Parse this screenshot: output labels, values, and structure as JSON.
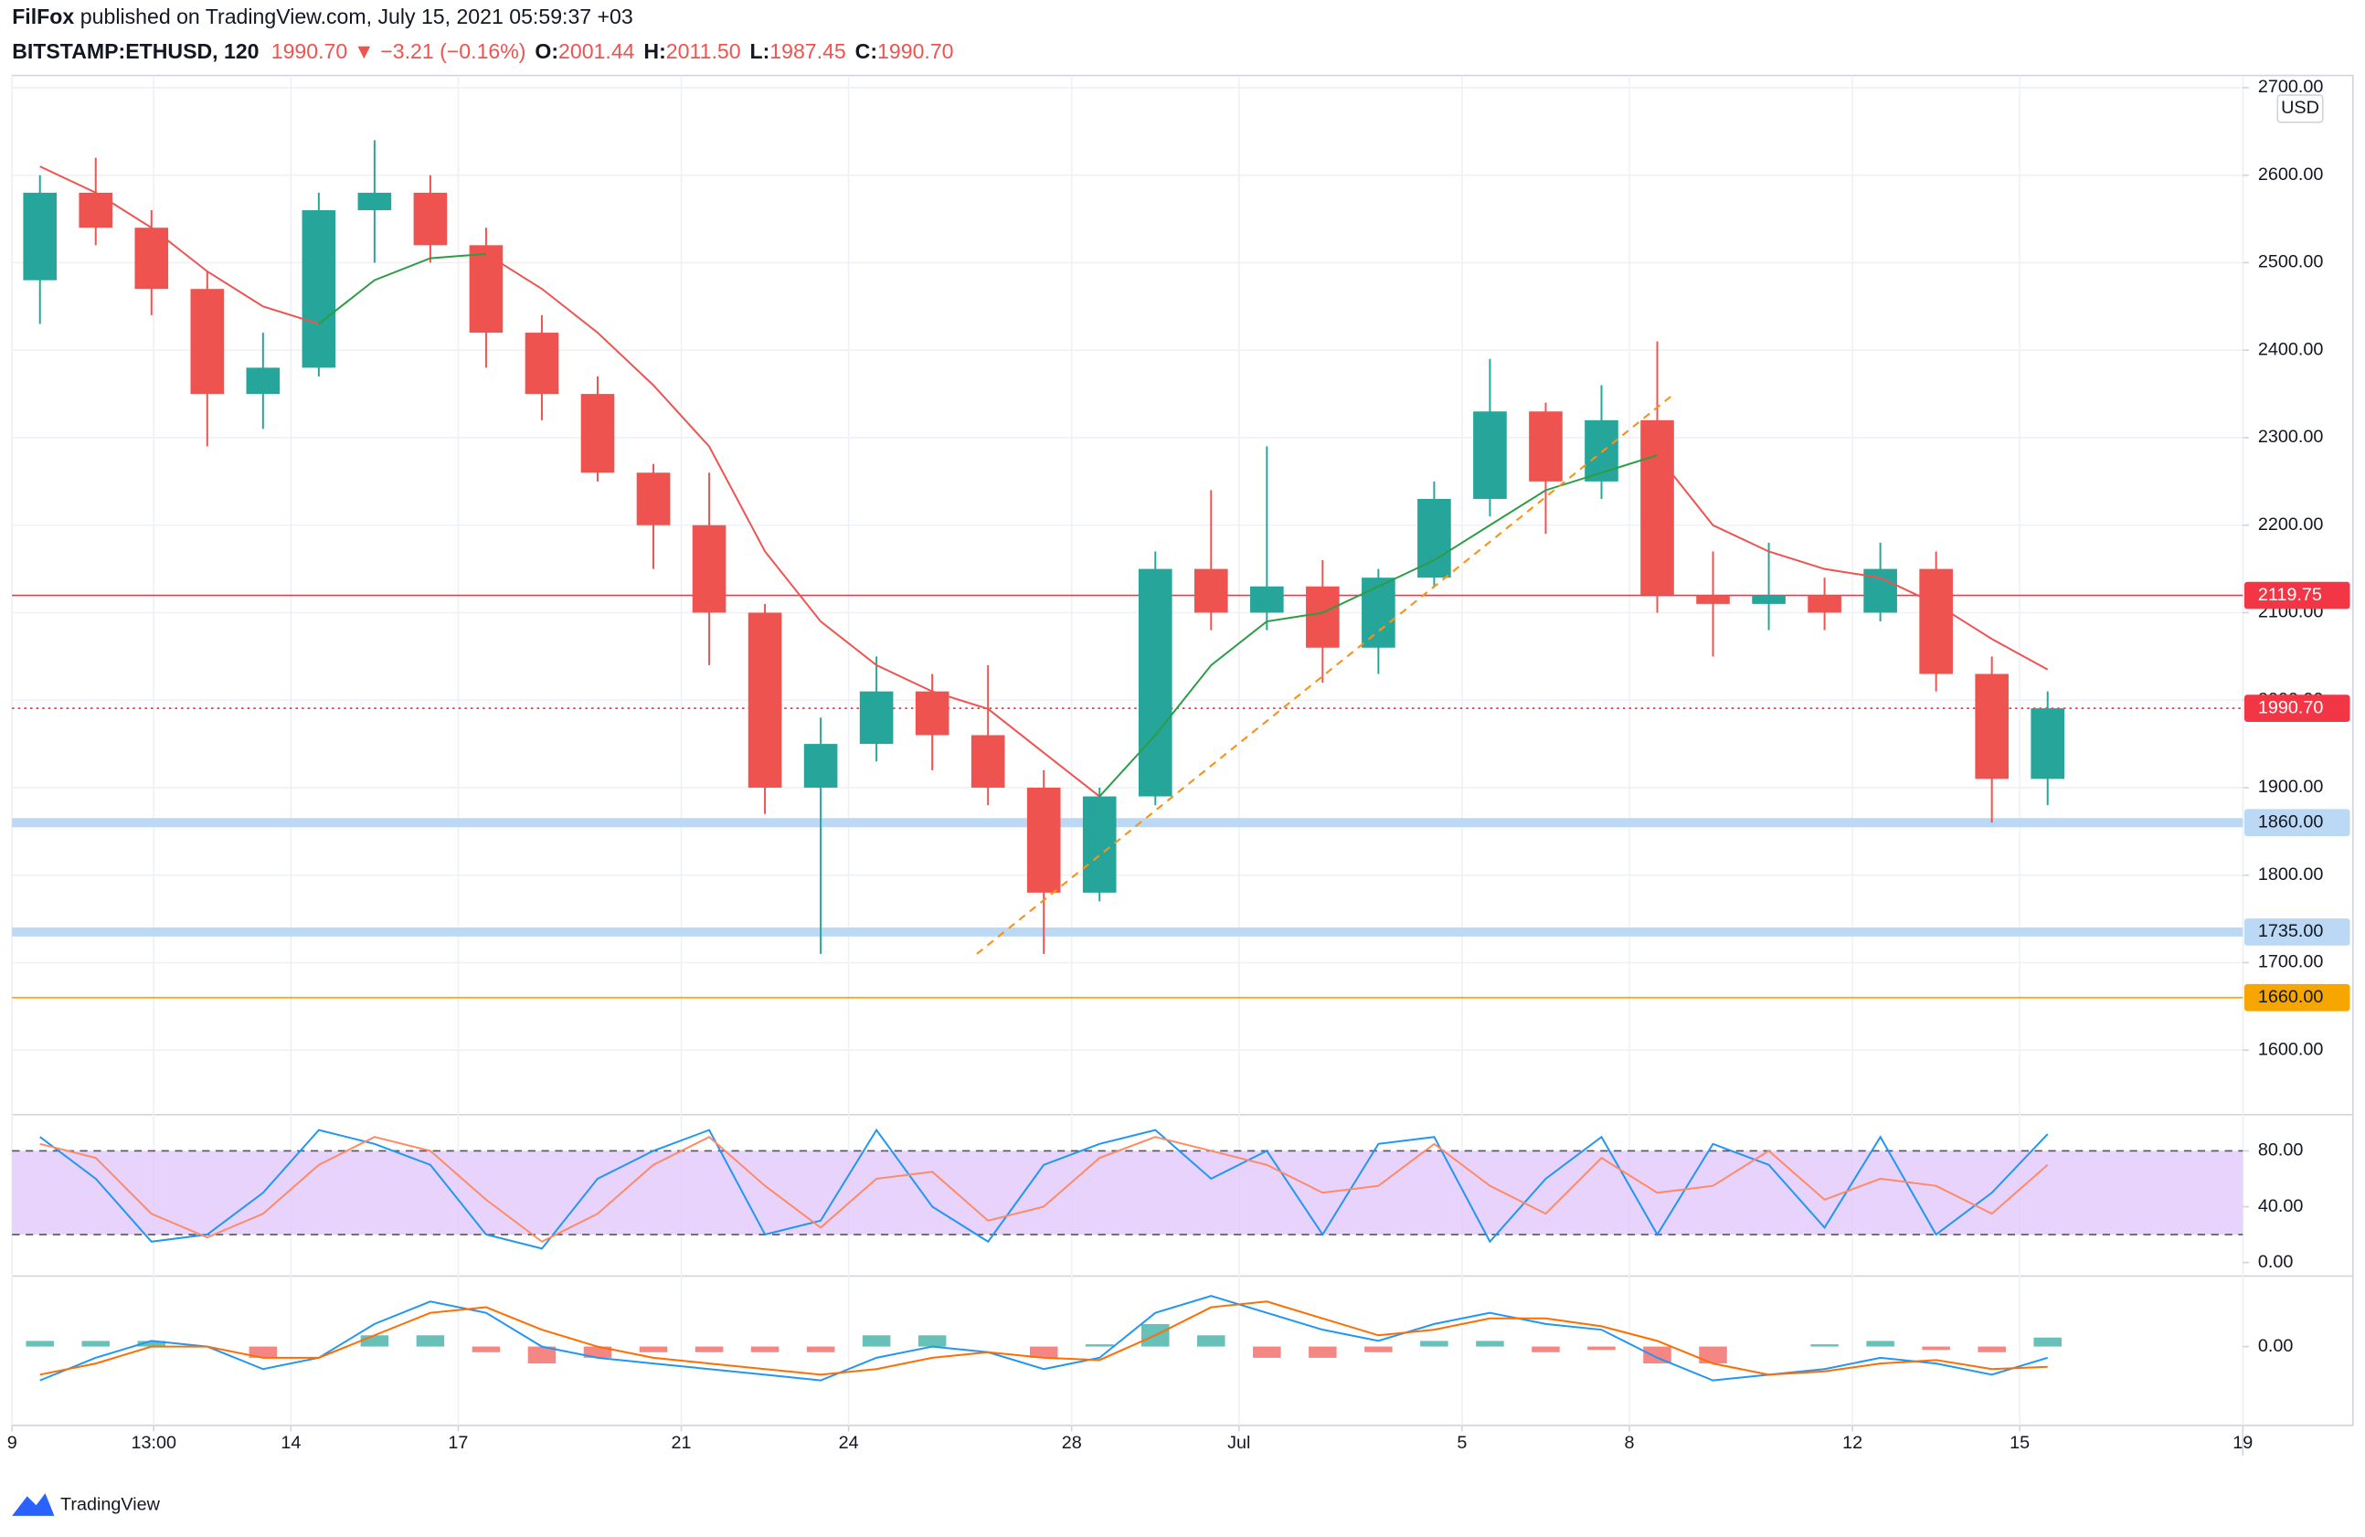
{
  "header": {
    "author": "FilFox",
    "published": "published on TradingView.com, July 15, 2021 05:59:37 +03",
    "symbol": "BITSTAMP:ETHUSD, 120",
    "last": "1990.70",
    "arrow": "▼",
    "change": "−3.21 (−0.16%)",
    "o_label": "O:",
    "o": "2001.44",
    "h_label": "H:",
    "h": "2011.50",
    "l_label": "L:",
    "l": "1987.45",
    "c_label": "C:",
    "c": "1990.70",
    "currency": "USD"
  },
  "footer": {
    "brand": "TradingView"
  },
  "chart_data": [
    {
      "type": "candlestick",
      "up_color": "#26a69a",
      "down_color": "#ef5350",
      "grid": true,
      "x": [
        0.5,
        1.5,
        2.5,
        3.5,
        4.5,
        5.5,
        6.5,
        7.5,
        8.5,
        9.5,
        10.5,
        11.5,
        12.5,
        13.5,
        14.5,
        15.5,
        16.5,
        17.5,
        18.5,
        19.5,
        20.5,
        21.5,
        22.5,
        23.5,
        24.5,
        25.5,
        26.5,
        27.5,
        28.5,
        29.5,
        30.5,
        31.5,
        32.5,
        33.5,
        34.5,
        35.5,
        36.5
      ],
      "open": [
        2480,
        2580,
        2540,
        2470,
        2350,
        2380,
        2560,
        2580,
        2520,
        2420,
        2350,
        2260,
        2200,
        2100,
        1900,
        1950,
        2010,
        1960,
        1900,
        1780,
        1890,
        2150,
        2100,
        2130,
        2060,
        2140,
        2230,
        2330,
        2250,
        2320,
        2120,
        2110,
        2120,
        2100,
        2150,
        2030,
        1910
      ],
      "high": [
        2600,
        2620,
        2560,
        2490,
        2420,
        2580,
        2640,
        2600,
        2540,
        2440,
        2370,
        2270,
        2260,
        2110,
        1980,
        2050,
        2030,
        2040,
        1920,
        1900,
        2170,
        2240,
        2290,
        2160,
        2150,
        2250,
        2390,
        2340,
        2360,
        2410,
        2170,
        2180,
        2140,
        2180,
        2170,
        2050,
        2010
      ],
      "low": [
        2430,
        2520,
        2440,
        2290,
        2310,
        2370,
        2500,
        2500,
        2380,
        2320,
        2250,
        2150,
        2040,
        1870,
        1710,
        1930,
        1920,
        1880,
        1710,
        1770,
        1880,
        2080,
        2080,
        2020,
        2030,
        2130,
        2210,
        2190,
        2230,
        2100,
        2050,
        2080,
        2080,
        2090,
        2010,
        1860,
        1880
      ],
      "close": [
        2580,
        2540,
        2470,
        2350,
        2380,
        2560,
        2580,
        2520,
        2420,
        2350,
        2260,
        2200,
        2100,
        1900,
        1950,
        2010,
        1960,
        1900,
        1780,
        1890,
        2150,
        2100,
        2130,
        2060,
        2140,
        2230,
        2330,
        2250,
        2320,
        2120,
        2110,
        2120,
        2100,
        2150,
        2030,
        1910,
        1990.7
      ],
      "series": [
        {
          "name": "MA",
          "color": "#ef5350",
          "values": [
            2610,
            2580,
            2540,
            2490,
            2450,
            2430,
            null,
            null,
            2510,
            2470,
            2420,
            2360,
            2290,
            2170,
            2090,
            2040,
            2010,
            1990,
            1940,
            1890,
            null,
            null,
            null,
            null,
            null,
            null,
            null,
            null,
            null,
            2280,
            2200,
            2170,
            2150,
            2140,
            2110,
            2070,
            2035
          ]
        },
        {
          "name": "MA rising",
          "color": "#2e9c45",
          "values": [
            null,
            null,
            null,
            null,
            null,
            2430,
            2480,
            2505,
            2510,
            null,
            null,
            null,
            null,
            null,
            null,
            null,
            null,
            null,
            null,
            1890,
            1960,
            2040,
            2090,
            2100,
            2130,
            2160,
            2200,
            2240,
            2260,
            2280,
            null,
            null,
            null,
            null,
            null,
            null,
            null
          ]
        }
      ],
      "trendline": {
        "color": "#f7931a",
        "x": [
          17.3,
          29.8
        ],
        "y": [
          1710,
          2350
        ]
      },
      "levels": [
        {
          "value": 2119.75,
          "label": "2119.75",
          "color": "#f23645",
          "style": "solid",
          "text_color": "#ffffff"
        },
        {
          "value": 1990.7,
          "label": "1990.70",
          "color": "#f23645",
          "style": "dotted",
          "text_color": "#ffffff"
        },
        {
          "value": 1860,
          "label": "1860.00",
          "color": "#bbd9f5",
          "style": "thick",
          "text_color": "#131722"
        },
        {
          "value": 1735,
          "label": "1735.00",
          "color": "#bbd9f5",
          "style": "thick",
          "text_color": "#131722"
        },
        {
          "value": 1660,
          "label": "1660.00",
          "color": "#f7a600",
          "style": "solid",
          "text_color": "#131722"
        }
      ],
      "xlim": [
        0,
        40
      ],
      "xticks": [
        {
          "value": 0,
          "label": "9"
        },
        {
          "value": 2.54,
          "label": "13:00"
        },
        {
          "value": 5,
          "label": "14"
        },
        {
          "value": 8,
          "label": "17"
        },
        {
          "value": 12,
          "label": "21"
        },
        {
          "value": 15,
          "label": "24"
        },
        {
          "value": 19,
          "label": "28"
        },
        {
          "value": 22,
          "label": "Jul"
        },
        {
          "value": 26,
          "label": "5"
        },
        {
          "value": 29,
          "label": "8"
        },
        {
          "value": 33,
          "label": "12"
        },
        {
          "value": 36,
          "label": "15"
        },
        {
          "value": 40,
          "label": "19"
        }
      ],
      "ylim": [
        1528,
        2714
      ],
      "yticks": [
        {
          "value": 1600,
          "label": "1600.00"
        },
        {
          "value": 1700,
          "label": "1700.00"
        },
        {
          "value": 1800,
          "label": "1800.00"
        },
        {
          "value": 1900,
          "label": "1900.00"
        },
        {
          "value": 2000,
          "label": "2000.00"
        },
        {
          "value": 2100,
          "label": "2100.00"
        },
        {
          "value": 2200,
          "label": "2200.00"
        },
        {
          "value": 2300,
          "label": "2300.00"
        },
        {
          "value": 2400,
          "label": "2400.00"
        },
        {
          "value": 2500,
          "label": "2500.00"
        },
        {
          "value": 2600,
          "label": "2600.00"
        },
        {
          "value": 2700,
          "label": "2700.00"
        }
      ]
    },
    {
      "type": "line",
      "band": [
        20,
        80
      ],
      "band_color": "#e1c8fb",
      "x": [
        0.5,
        1.5,
        2.5,
        3.5,
        4.5,
        5.5,
        6.5,
        7.5,
        8.5,
        9.5,
        10.5,
        11.5,
        12.5,
        13.5,
        14.5,
        15.5,
        16.5,
        17.5,
        18.5,
        19.5,
        20.5,
        21.5,
        22.5,
        23.5,
        24.5,
        25.5,
        26.5,
        27.5,
        28.5,
        29.5,
        30.5,
        31.5,
        32.5,
        33.5,
        34.5,
        35.5,
        36.5
      ],
      "xlim": [
        0,
        40
      ],
      "series": [
        {
          "name": "%K",
          "color": "#2196f3",
          "values": [
            90,
            60,
            15,
            20,
            50,
            95,
            85,
            70,
            20,
            10,
            60,
            80,
            95,
            20,
            30,
            95,
            40,
            15,
            70,
            85,
            95,
            60,
            80,
            20,
            85,
            90,
            15,
            60,
            90,
            20,
            85,
            70,
            25,
            90,
            20,
            50,
            92
          ]
        },
        {
          "name": "%D",
          "color": "#ff8a65",
          "values": [
            85,
            75,
            35,
            18,
            35,
            70,
            90,
            80,
            45,
            15,
            35,
            70,
            90,
            55,
            25,
            60,
            65,
            30,
            40,
            75,
            90,
            80,
            70,
            50,
            55,
            85,
            55,
            35,
            75,
            50,
            55,
            80,
            45,
            60,
            55,
            35,
            70
          ]
        }
      ],
      "ylim": [
        -8.6,
        104.9
      ],
      "yticks": [
        {
          "value": 0,
          "label": "0.00"
        },
        {
          "value": 40,
          "label": "40.00"
        },
        {
          "value": 80,
          "label": "80.00"
        }
      ]
    },
    {
      "type": "macd",
      "x": [
        0.5,
        1.5,
        2.5,
        3.5,
        4.5,
        5.5,
        6.5,
        7.5,
        8.5,
        9.5,
        10.5,
        11.5,
        12.5,
        13.5,
        14.5,
        15.5,
        16.5,
        17.5,
        18.5,
        19.5,
        20.5,
        21.5,
        22.5,
        23.5,
        24.5,
        25.5,
        26.5,
        27.5,
        28.5,
        29.5,
        30.5,
        31.5,
        32.5,
        33.5,
        34.5,
        35.5,
        36.5
      ],
      "xlim": [
        0,
        40
      ],
      "histogram": {
        "up_color": "#26a69a",
        "down_color": "#ef5350",
        "values": [
          5,
          5,
          5,
          0,
          -10,
          0,
          10,
          10,
          -5,
          -15,
          -10,
          -5,
          -5,
          -5,
          -5,
          10,
          10,
          0,
          -10,
          2,
          20,
          10,
          -10,
          -10,
          -5,
          5,
          5,
          -5,
          -3,
          -15,
          -15,
          0,
          2,
          5,
          -3,
          -5,
          8
        ]
      },
      "series": [
        {
          "name": "MACD",
          "color": "#2196f3",
          "values": [
            -30,
            -10,
            5,
            0,
            -20,
            -10,
            20,
            40,
            30,
            0,
            -10,
            -15,
            -20,
            -25,
            -30,
            -10,
            0,
            -5,
            -20,
            -10,
            30,
            45,
            30,
            15,
            5,
            20,
            30,
            20,
            15,
            -10,
            -30,
            -25,
            -20,
            -10,
            -15,
            -25,
            -10
          ]
        },
        {
          "name": "Signal",
          "color": "#ff6d00",
          "values": [
            -25,
            -15,
            0,
            0,
            -10,
            -10,
            10,
            30,
            35,
            15,
            0,
            -10,
            -15,
            -20,
            -25,
            -20,
            -10,
            -5,
            -10,
            -12,
            10,
            35,
            40,
            25,
            10,
            15,
            25,
            25,
            18,
            5,
            -15,
            -25,
            -22,
            -15,
            -12,
            -20,
            -18
          ]
        }
      ],
      "ylim": [
        -70,
        60
      ],
      "yticks": [
        {
          "value": 0,
          "label": "0.00"
        }
      ]
    }
  ]
}
